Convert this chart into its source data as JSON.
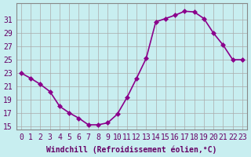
{
  "x": [
    0,
    1,
    2,
    3,
    4,
    5,
    6,
    7,
    8,
    9,
    10,
    11,
    12,
    13,
    14,
    15,
    16,
    17,
    18,
    19,
    20,
    21,
    22,
    23
  ],
  "y": [
    23.0,
    22.2,
    21.3,
    20.2,
    18.0,
    17.0,
    16.2,
    15.2,
    15.2,
    15.5,
    16.8,
    19.3,
    22.2,
    25.2,
    30.7,
    31.2,
    31.7,
    32.3,
    32.2,
    31.2,
    29.0,
    27.2,
    25.0,
    25.0
  ],
  "line_color": "#8B008B",
  "marker_color": "#8B008B",
  "bg_color": "#c8eef0",
  "grid_color": "#aaaaaa",
  "xlabel": "Windchill (Refroidissement éolien,°C)",
  "ylabel_ticks": [
    15,
    17,
    19,
    21,
    23,
    25,
    27,
    29,
    31
  ],
  "xlim": [
    -0.5,
    23.5
  ],
  "ylim": [
    14.5,
    33.5
  ],
  "xticks": [
    0,
    1,
    2,
    3,
    4,
    5,
    6,
    7,
    8,
    9,
    10,
    11,
    12,
    13,
    14,
    15,
    16,
    17,
    18,
    19,
    20,
    21,
    22,
    23
  ],
  "xlabel_fontsize": 7,
  "tick_fontsize": 7,
  "line_width": 1.2,
  "marker_size": 3
}
